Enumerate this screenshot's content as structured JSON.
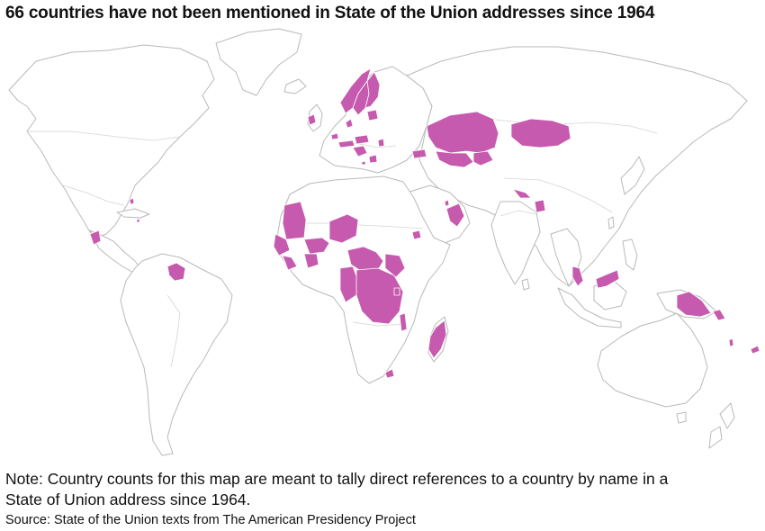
{
  "title": "66 countries have not been mentioned in State of the Union addresses since 1964",
  "note": "Note: Country counts for this map are meant to tally direct references to a country by name in a State of Union address since 1964.",
  "source": "Source: State of the Union texts from The American Presidency Project",
  "colors": {
    "highlight": "#c65aae",
    "land_fill": "#ffffff",
    "land_stroke": "#b9b9b9",
    "background": "#ffffff"
  }
}
